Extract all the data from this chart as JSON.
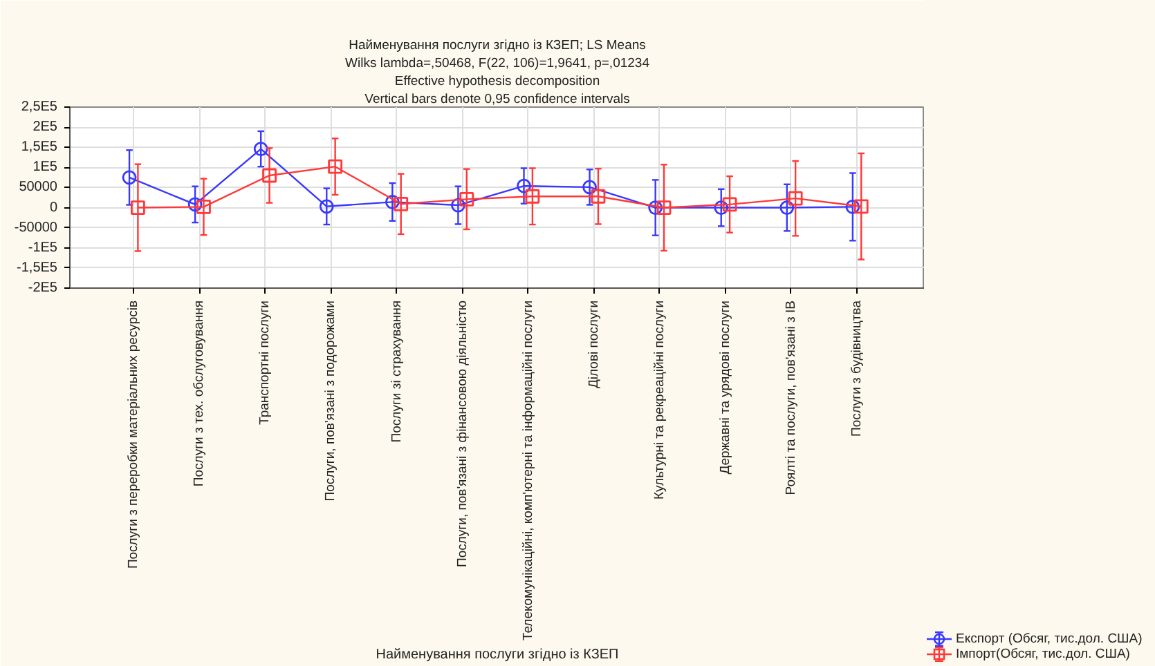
{
  "chart_data": {
    "type": "line",
    "title": "Найменування послуги згідно із КЗЕП; LS Means",
    "subtitle": "Wilks lambda=,50468, F(22, 106)=1,9641, p=,01234",
    "annotations": [
      "Effective hypothesis decomposition",
      "Vertical bars denote 0,95 confidence intervals"
    ],
    "xlabel": "Найменування послуги згідно із КЗЕП",
    "categories": [
      "Послуги з переробки матеріальних ресурсів",
      "Послуги з тех. обслуговування",
      "Транспортні послуги",
      "Послуги, пов'язані з подорожами",
      "Послуги зі страхування",
      "Послуги, пов'язані з фінансовою діяльністю",
      "Телекомунікаційні, комп'ютерні та інформаційні послуги",
      "Ділові послуги",
      "Культурні та рекреаційні послуги",
      "Державні та урядові послуги",
      "Роялті та послуги, пов'язані з ІВ",
      "Послуги з будівництва"
    ],
    "series": [
      {
        "name": "Експорт (Обсяг, тис.дол. США)",
        "color": "#3838ff",
        "marker": "circle",
        "values": [
          75000,
          8000,
          146000,
          3000,
          14000,
          6000,
          54000,
          51000,
          0,
          0,
          0,
          2000
        ],
        "errors": [
          68000,
          45000,
          44000,
          45000,
          47000,
          47000,
          44000,
          44000,
          69000,
          46000,
          58000,
          84000
        ]
      },
      {
        "name": "Імпорт(Обсяг, тис.дол. США)",
        "color": "#ff3838",
        "marker": "square",
        "values": [
          0,
          2000,
          80000,
          102000,
          9000,
          21000,
          28000,
          28000,
          0,
          8000,
          23000,
          3000
        ],
        "errors": [
          108000,
          70000,
          68000,
          70000,
          75000,
          75000,
          70000,
          69000,
          107000,
          70000,
          93000,
          132000
        ]
      }
    ],
    "ylim": [
      -200000,
      250000
    ],
    "yticks": [
      {
        "value": -200000,
        "label": "-2E5"
      },
      {
        "value": -150000,
        "label": "-1,5E5"
      },
      {
        "value": -100000,
        "label": "-1E5"
      },
      -50000,
      0,
      50000,
      {
        "value": 100000,
        "label": "1E5"
      },
      {
        "value": 150000,
        "label": "1,5E5"
      },
      {
        "value": 200000,
        "label": "2E5"
      },
      {
        "value": 250000,
        "label": "2,5E5"
      }
    ],
    "grid": true,
    "legend": "bottom right"
  }
}
